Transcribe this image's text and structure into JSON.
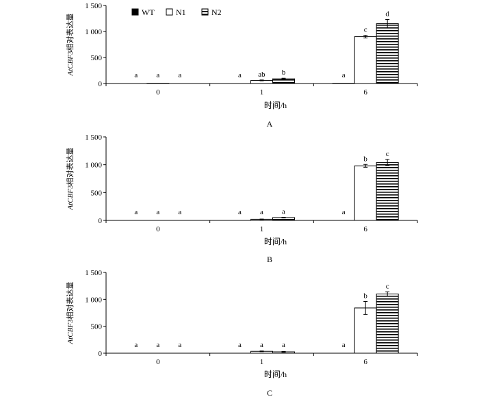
{
  "chart_data": [
    {
      "type": "bar",
      "panel_label": "A",
      "categories": [
        "0",
        "1",
        "6"
      ],
      "xlabel": "时间/h",
      "ylabel_italic": "AtCBF",
      "ylabel_rest": "3相对表达量",
      "ylim": [
        0,
        1500
      ],
      "yticks": [
        0,
        500,
        1000,
        1500
      ],
      "ytick_labels": [
        "0",
        "500",
        "1 000",
        "1 500"
      ],
      "series": [
        {
          "name": "WT",
          "values": [
            0,
            0,
            5
          ],
          "errors": [
            0,
            0,
            0
          ],
          "sig": [
            "a",
            "a",
            "a"
          ]
        },
        {
          "name": "N1",
          "values": [
            5,
            60,
            900
          ],
          "errors": [
            0,
            8,
            25
          ],
          "sig": [
            "a",
            "ab",
            "c"
          ]
        },
        {
          "name": "N2",
          "values": [
            0,
            90,
            1150
          ],
          "errors": [
            0,
            12,
            80
          ],
          "sig": [
            "a",
            "b",
            "d"
          ]
        }
      ],
      "legend": {
        "position": "top-left",
        "entries": [
          "WT",
          "N1",
          "N2"
        ]
      }
    },
    {
      "type": "bar",
      "panel_label": "B",
      "categories": [
        "0",
        "1",
        "6"
      ],
      "xlabel": "时间/h",
      "ylabel_italic": "AtCBF",
      "ylabel_rest": "3相对表达量",
      "ylim": [
        0,
        1500
      ],
      "yticks": [
        0,
        500,
        1000,
        1500
      ],
      "ytick_labels": [
        "0",
        "500",
        "1 000",
        "1 500"
      ],
      "series": [
        {
          "name": "WT",
          "values": [
            0,
            0,
            0
          ],
          "errors": [
            0,
            0,
            0
          ],
          "sig": [
            "a",
            "a",
            "a"
          ]
        },
        {
          "name": "N1",
          "values": [
            0,
            20,
            980
          ],
          "errors": [
            0,
            4,
            25
          ],
          "sig": [
            "a",
            "a",
            "b"
          ]
        },
        {
          "name": "N2",
          "values": [
            0,
            50,
            1040
          ],
          "errors": [
            0,
            6,
            55
          ],
          "sig": [
            "a",
            "a",
            "c"
          ]
        }
      ]
    },
    {
      "type": "bar",
      "panel_label": "C",
      "categories": [
        "0",
        "1",
        "6"
      ],
      "xlabel": "时间/h",
      "ylabel_italic": "AtCBF",
      "ylabel_rest": "3相对表达量",
      "ylim": [
        0,
        1500
      ],
      "yticks": [
        0,
        500,
        1000,
        1500
      ],
      "ytick_labels": [
        "0",
        "500",
        "1 000",
        "1 500"
      ],
      "series": [
        {
          "name": "WT",
          "values": [
            0,
            0,
            0
          ],
          "errors": [
            0,
            0,
            0
          ],
          "sig": [
            "a",
            "a",
            "a"
          ]
        },
        {
          "name": "N1",
          "values": [
            0,
            35,
            840
          ],
          "errors": [
            0,
            6,
            120
          ],
          "sig": [
            "a",
            "a",
            "b"
          ]
        },
        {
          "name": "N2",
          "values": [
            0,
            25,
            1100
          ],
          "errors": [
            0,
            8,
            40
          ],
          "sig": [
            "a",
            "a",
            "c"
          ]
        }
      ]
    }
  ]
}
